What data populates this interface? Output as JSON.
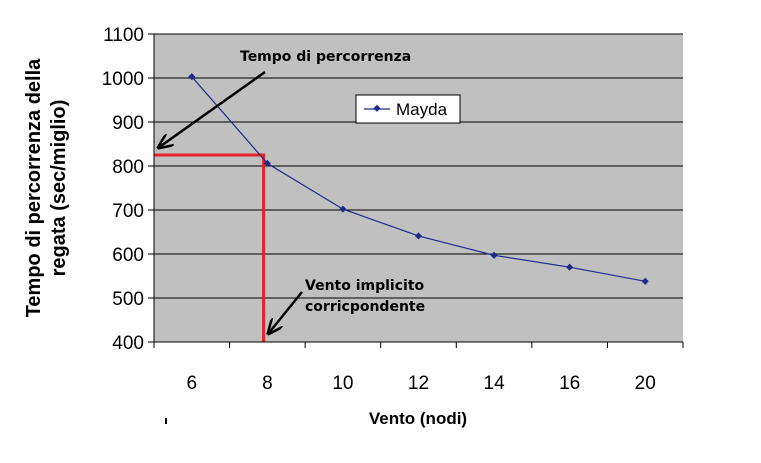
{
  "chart_data": {
    "type": "line",
    "title": "",
    "xlabel": "Vento (nodi)",
    "ylabel_lines": [
      "Tempo di percorrenza della",
      "regata (sec/miglio)"
    ],
    "categories": [
      "6",
      "8",
      "10",
      "12",
      "14",
      "16",
      "20"
    ],
    "series": [
      {
        "name": "Mayda",
        "values": [
          1003,
          806,
          702,
          641,
          597,
          570,
          538
        ],
        "color": "#1f2a8a"
      }
    ],
    "ylim": [
      400,
      1100
    ],
    "yticks": [
      400,
      500,
      600,
      700,
      800,
      900,
      1000,
      1100
    ],
    "grid": true,
    "plot_background": "#c0c0c0",
    "legend": "top-center, inside plot",
    "annotations": {
      "time": {
        "text": "Tempo di percorrenza",
        "value": 825
      },
      "wind": {
        "lines": [
          "Vento implicito",
          "corricpondente"
        ],
        "value": 7.9
      }
    },
    "highlight_color": "#e8202a"
  }
}
